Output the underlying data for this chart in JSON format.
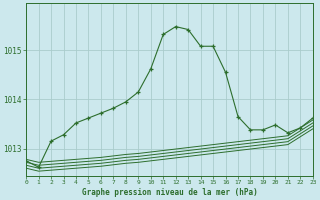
{
  "title": "Graphe pression niveau de la mer (hPa)",
  "background_color": "#cce8ed",
  "grid_color": "#aacccc",
  "line_color": "#2d6e2d",
  "x_ticks": [
    0,
    1,
    2,
    3,
    4,
    5,
    6,
    7,
    8,
    9,
    10,
    11,
    12,
    13,
    14,
    15,
    16,
    17,
    18,
    19,
    20,
    21,
    22,
    23
  ],
  "y_ticks": [
    1013,
    1014,
    1015
  ],
  "ylim": [
    1012.45,
    1015.95
  ],
  "xlim": [
    0,
    23
  ],
  "main_series": [
    1012.75,
    1012.62,
    1013.15,
    1013.28,
    1013.52,
    1013.62,
    1013.72,
    1013.82,
    1013.95,
    1014.15,
    1014.62,
    1015.32,
    1015.48,
    1015.42,
    1015.08,
    1015.08,
    1014.55,
    1013.65,
    1013.38,
    1013.38,
    1013.48,
    1013.32,
    1013.42,
    1013.62
  ],
  "flat_series_1": [
    1012.78,
    1012.72,
    1012.74,
    1012.76,
    1012.78,
    1012.8,
    1012.82,
    1012.85,
    1012.88,
    1012.9,
    1012.93,
    1012.96,
    1012.99,
    1013.02,
    1013.05,
    1013.08,
    1013.11,
    1013.14,
    1013.17,
    1013.2,
    1013.23,
    1013.26,
    1013.42,
    1013.58
  ],
  "flat_series_2": [
    1012.72,
    1012.66,
    1012.68,
    1012.7,
    1012.72,
    1012.74,
    1012.76,
    1012.79,
    1012.82,
    1012.84,
    1012.87,
    1012.9,
    1012.93,
    1012.96,
    1012.99,
    1013.02,
    1013.05,
    1013.08,
    1013.11,
    1013.14,
    1013.17,
    1013.2,
    1013.36,
    1013.52
  ],
  "flat_series_3": [
    1012.66,
    1012.6,
    1012.62,
    1012.64,
    1012.66,
    1012.68,
    1012.7,
    1012.73,
    1012.76,
    1012.78,
    1012.81,
    1012.84,
    1012.87,
    1012.9,
    1012.93,
    1012.96,
    1012.99,
    1013.02,
    1013.05,
    1013.08,
    1013.11,
    1013.14,
    1013.3,
    1013.46
  ],
  "flat_series_4": [
    1012.6,
    1012.54,
    1012.56,
    1012.58,
    1012.6,
    1012.62,
    1012.64,
    1012.67,
    1012.7,
    1012.72,
    1012.75,
    1012.78,
    1012.81,
    1012.84,
    1012.87,
    1012.9,
    1012.93,
    1012.96,
    1012.99,
    1013.02,
    1013.05,
    1013.08,
    1013.24,
    1013.4
  ]
}
